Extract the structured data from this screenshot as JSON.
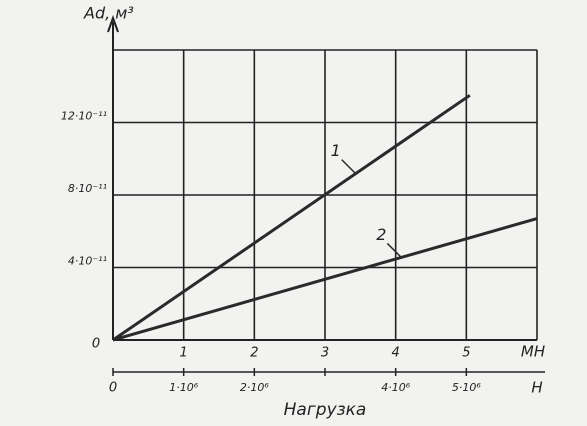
{
  "chart_data": {
    "type": "line",
    "y_label": "Ad, м³",
    "x_unit": "MH",
    "x2_unit": "H",
    "x_label": "Нагрузка",
    "xlim": [
      0,
      6
    ],
    "xticks": [
      0,
      1,
      2,
      3,
      4,
      5
    ],
    "x2lim": [
      0,
      6000000
    ],
    "x2ticks": [
      {
        "value": 1000000,
        "label": "1·10⁶"
      },
      {
        "value": 2000000,
        "label": "2·10⁶"
      },
      {
        "value": 4000000,
        "label": "4·10⁶"
      },
      {
        "value": 5000000,
        "label": "5·10⁶"
      }
    ],
    "ylim": [
      0,
      1.6e-10
    ],
    "yticks": [
      {
        "value": 4e-11,
        "label": "4·10⁻¹¹"
      },
      {
        "value": 8e-11,
        "label": "8·10⁻¹¹"
      },
      {
        "value": 1.2e-10,
        "label": "12·10⁻¹¹"
      }
    ],
    "grid": true,
    "series": [
      {
        "name": "1",
        "color": "#2a2a2a",
        "x": [
          0,
          5.05
        ],
        "values": [
          0,
          1.35e-10
        ]
      },
      {
        "name": "2",
        "color": "#2a2a2a",
        "x": [
          0,
          6
        ],
        "values": [
          0,
          6.7e-11
        ]
      }
    ]
  }
}
